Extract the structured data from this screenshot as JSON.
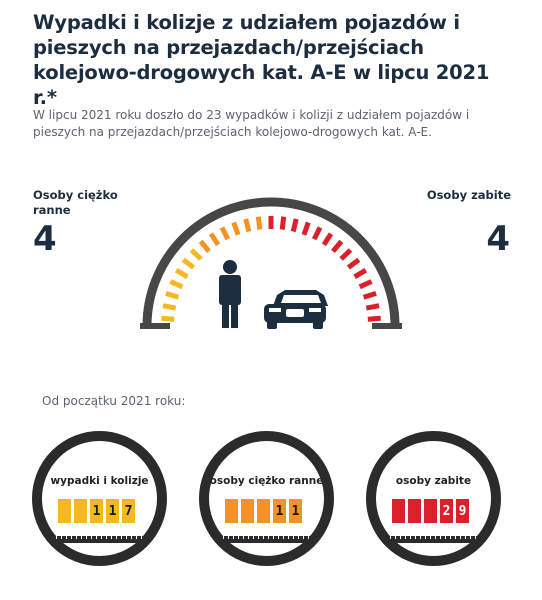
{
  "title": "Wypadki i kolizje z udziałem pojazdów i pieszych na przejazdach/przejściach kolejowo-drogowych kat. A-E w lipcu 2021 r.*",
  "intro": "W lipcu 2021 roku doszło do 23 wypadków i kolizji z udziałem pojazdów i pieszych na przejazdach/przejściach kolejowo-drogowych kat. A-E.",
  "stats": {
    "injured": {
      "label": "Osoby ciężko ranne",
      "value": "4"
    },
    "killed": {
      "label": "Osoby zabite",
      "value": "4"
    }
  },
  "gauge": {
    "icons": [
      "pedestrian-icon",
      "car-icon"
    ],
    "colors": {
      "dark": "#474747",
      "yellow": "#f6b723",
      "orange": "#f39325",
      "red": "#d9202b"
    }
  },
  "since_label": "Od początku 2021 roku:",
  "counters": [
    {
      "label": "wypadki i kolizje",
      "digits": [
        "",
        "",
        "1",
        "1",
        "7"
      ],
      "color": "#f6b723"
    },
    {
      "label": "osoby ciężko ranne",
      "digits": [
        "",
        "",
        "",
        "1",
        "1"
      ],
      "color": "#f39325"
    },
    {
      "label": "osoby zabite",
      "digits": [
        "",
        "",
        "",
        "2",
        "9"
      ],
      "color": "#d9202b"
    }
  ]
}
